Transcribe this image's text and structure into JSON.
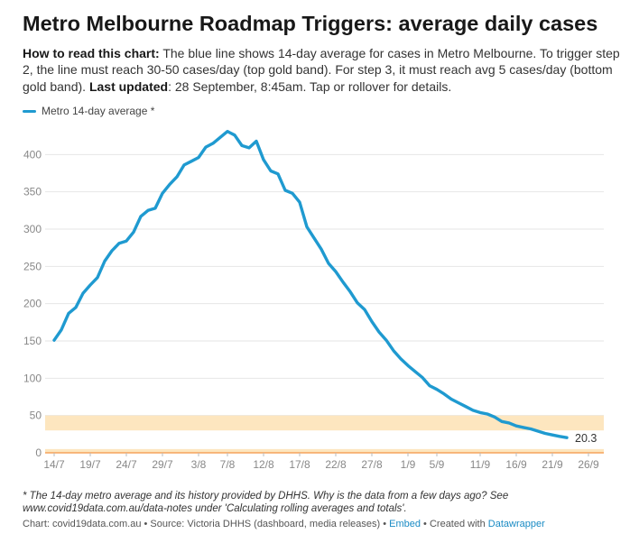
{
  "title": "Metro Melbourne Roadmap Triggers: average daily cases",
  "intro": {
    "how_label": "How to read this chart:",
    "how_text": " The blue line shows 14-day average for cases in Metro Melbourne. To trigger step 2, the line must reach 30-50 cases/day (top gold band). For step 3, it must reach avg 5 cases/day (bottom gold band). ",
    "updated_label": "Last updated",
    "updated_text": ": 28 September, 8:45am. Tap or rollover for details."
  },
  "notes": "* The 14-day metro average and its history provided by DHHS. Why is the data from a few days ago? See www.covid19data.com.au/data-notes under 'Calculating rolling averages and totals'.",
  "byline": {
    "source": "Chart: covid19data.com.au • Source: Victoria DHHS (dashboard, media releases) • ",
    "embed": "Embed",
    "created": " • Created with ",
    "tool": "Datawrapper"
  },
  "colors": {
    "line": "#1f9ad0",
    "band": "#fde6bf",
    "band_line": "#f5a35c",
    "grid": "#e6e6e6"
  },
  "chart_data": {
    "type": "line",
    "series_name": "Metro 14-day average *",
    "x_start": "14/7",
    "x_end": "28/9",
    "y": [
      151,
      165,
      187,
      195,
      214,
      225,
      235,
      257,
      271,
      281,
      284,
      296,
      317,
      325,
      328,
      348,
      360,
      370,
      386,
      391,
      396,
      410,
      415,
      423,
      431,
      426,
      412,
      409,
      418,
      393,
      378,
      374,
      352,
      348,
      336,
      303,
      288,
      273,
      254,
      243,
      229,
      216,
      201,
      192,
      176,
      162,
      151,
      137,
      126,
      117,
      109,
      101,
      90,
      85,
      79,
      72,
      67,
      62,
      57,
      54,
      52,
      48,
      42,
      40,
      36,
      34,
      32,
      29,
      26,
      24,
      22,
      20.3
    ],
    "x_ticks": [
      {
        "label": "14/7",
        "index": 0
      },
      {
        "label": "19/7",
        "index": 5
      },
      {
        "label": "24/7",
        "index": 10
      },
      {
        "label": "29/7",
        "index": 15
      },
      {
        "label": "3/8",
        "index": 20
      },
      {
        "label": "7/8",
        "index": 24
      },
      {
        "label": "12/8",
        "index": 29
      },
      {
        "label": "17/8",
        "index": 34
      },
      {
        "label": "22/8",
        "index": 39
      },
      {
        "label": "27/8",
        "index": 44
      },
      {
        "label": "1/9",
        "index": 49
      },
      {
        "label": "5/9",
        "index": 53
      },
      {
        "label": "11/9",
        "index": 59
      },
      {
        "label": "16/9",
        "index": 64
      },
      {
        "label": "21/9",
        "index": 69
      },
      {
        "label": "26/9",
        "index": 74
      }
    ],
    "y_ticks": [
      0,
      50,
      100,
      150,
      200,
      250,
      300,
      350,
      400
    ],
    "ylim": [
      0,
      450
    ],
    "x_span": 76,
    "bands": [
      {
        "name": "step-2",
        "from": 30,
        "to": 50
      },
      {
        "name": "step-3",
        "from": 0,
        "to": 5
      }
    ],
    "end_label": "20.3",
    "legend_position": "top-left"
  }
}
